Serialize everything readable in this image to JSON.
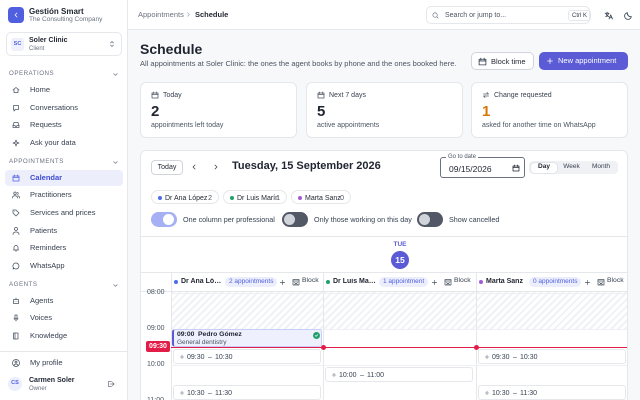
{
  "sidebar": {
    "brand": {
      "name": "Gestión Smart",
      "tagline": "The Consulting Company"
    },
    "client": {
      "initials": "SC",
      "name": "Soler Clinic",
      "role": "Client"
    },
    "sections": [
      {
        "title": "OPERATIONS",
        "items": [
          {
            "label": "Home"
          },
          {
            "label": "Conversations"
          },
          {
            "label": "Requests"
          },
          {
            "label": "Ask your data"
          }
        ]
      },
      {
        "title": "APPOINTMENTS",
        "items": [
          {
            "label": "Calendar",
            "active": true
          },
          {
            "label": "Practitioners"
          },
          {
            "label": "Services and prices"
          },
          {
            "label": "Patients"
          },
          {
            "label": "Reminders"
          },
          {
            "label": "WhatsApp"
          }
        ]
      },
      {
        "title": "AGENTS",
        "items": [
          {
            "label": "Agents"
          },
          {
            "label": "Voices"
          },
          {
            "label": "Knowledge"
          }
        ]
      }
    ],
    "profile": "My profile",
    "user": {
      "initials": "CS",
      "name": "Carmen Soler",
      "role": "Owner"
    }
  },
  "topbar": {
    "breadcrumbs": [
      "Appointments",
      "Schedule"
    ],
    "search": "Search or jump to...",
    "shortcut": "Ctrl K"
  },
  "header": {
    "title": "Schedule",
    "subtitle": "All appointments at Soler Clinic: the ones the agent books by phone and the ones booked here.",
    "actions": [
      "Block time",
      "New appointment"
    ]
  },
  "stats": [
    {
      "label": "Today",
      "value": 2,
      "caption": "appointments left today",
      "color": "#1f2430"
    },
    {
      "label": "Next 7 days",
      "value": 5,
      "caption": "active appointments",
      "color": "#1f2430"
    },
    {
      "label": "Change requested",
      "value": 1,
      "caption": "asked for another time on WhatsApp",
      "color": "#d97706"
    }
  ],
  "calendar": {
    "today_button": "Today",
    "date": "Tuesday, 15 September 2026",
    "date_input_label": "Go to date",
    "date_input": "09/15/2026",
    "views": [
      {
        "label": "Day",
        "active": true
      },
      {
        "label": "Week"
      },
      {
        "label": "Month"
      }
    ],
    "practitioners": [
      {
        "name": "Dr Ana López",
        "count": 2,
        "color": "#4f6bed",
        "appointments": "2 appointments"
      },
      {
        "name": "Dr Luis Marín",
        "count": 1,
        "color": "#22a06b",
        "appointments": "1 appointment"
      },
      {
        "name": "Marta Sanz",
        "count": 0,
        "color": "#a35bd6",
        "appointments": "0 appointments"
      }
    ],
    "block": "Block",
    "toggles": [
      {
        "label": "One column per professional",
        "on": true
      },
      {
        "label": "Only those working on this day",
        "on": false
      },
      {
        "label": "Show cancelled",
        "on": false
      }
    ],
    "day": {
      "weekday": "TUE",
      "number": 15
    },
    "times": [
      "08:00",
      "09:00",
      "10:00",
      "11:00"
    ],
    "now": "09:30",
    "separator": "–",
    "events": [
      {
        "column": 0,
        "start": "09:00",
        "end": "09:30",
        "title": "Pedro Gómez",
        "subtitle": "General dentistry",
        "confirmed": true
      }
    ],
    "slots": [
      {
        "column": 0,
        "start": "09:30",
        "end": "10:30"
      },
      {
        "column": 0,
        "start": "10:30",
        "end": "11:30"
      },
      {
        "column": 1,
        "start": "10:00",
        "end": "11:00"
      },
      {
        "column": 2,
        "start": "09:30",
        "end": "10:30"
      },
      {
        "column": 2,
        "start": "10:30",
        "end": "11:30"
      }
    ]
  }
}
